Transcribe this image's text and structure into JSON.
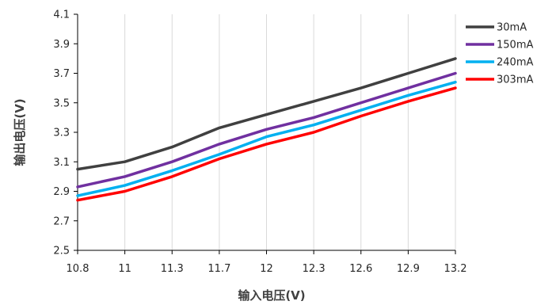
{
  "chart_data": {
    "type": "line",
    "x": [
      "10.8",
      "11",
      "11.3",
      "11.7",
      "12",
      "12.3",
      "12.6",
      "12.9",
      "13.2"
    ],
    "series": [
      {
        "name": "30mA",
        "color": "#404040",
        "values": [
          3.05,
          3.1,
          3.2,
          3.33,
          3.42,
          3.51,
          3.6,
          3.7,
          3.8
        ]
      },
      {
        "name": "150mA",
        "color": "#7030A0",
        "values": [
          2.93,
          3.0,
          3.1,
          3.22,
          3.32,
          3.4,
          3.5,
          3.6,
          3.7
        ]
      },
      {
        "name": "240mA",
        "color": "#00B0F0",
        "values": [
          2.87,
          2.94,
          3.04,
          3.15,
          3.27,
          3.35,
          3.45,
          3.55,
          3.64
        ]
      },
      {
        "name": "303mA",
        "color": "#FF0000",
        "values": [
          2.84,
          2.9,
          3.0,
          3.12,
          3.22,
          3.3,
          3.41,
          3.51,
          3.6
        ]
      }
    ],
    "y_ticks": [
      "2.5",
      "2.7",
      "2.9",
      "3.1",
      "3.3",
      "3.5",
      "3.7",
      "3.9",
      "4.1"
    ],
    "ylim": [
      2.5,
      4.1
    ],
    "xlabel": "输入电压(V)",
    "ylabel": "输出电压(V)",
    "grid": "vertical",
    "legend": "right"
  }
}
